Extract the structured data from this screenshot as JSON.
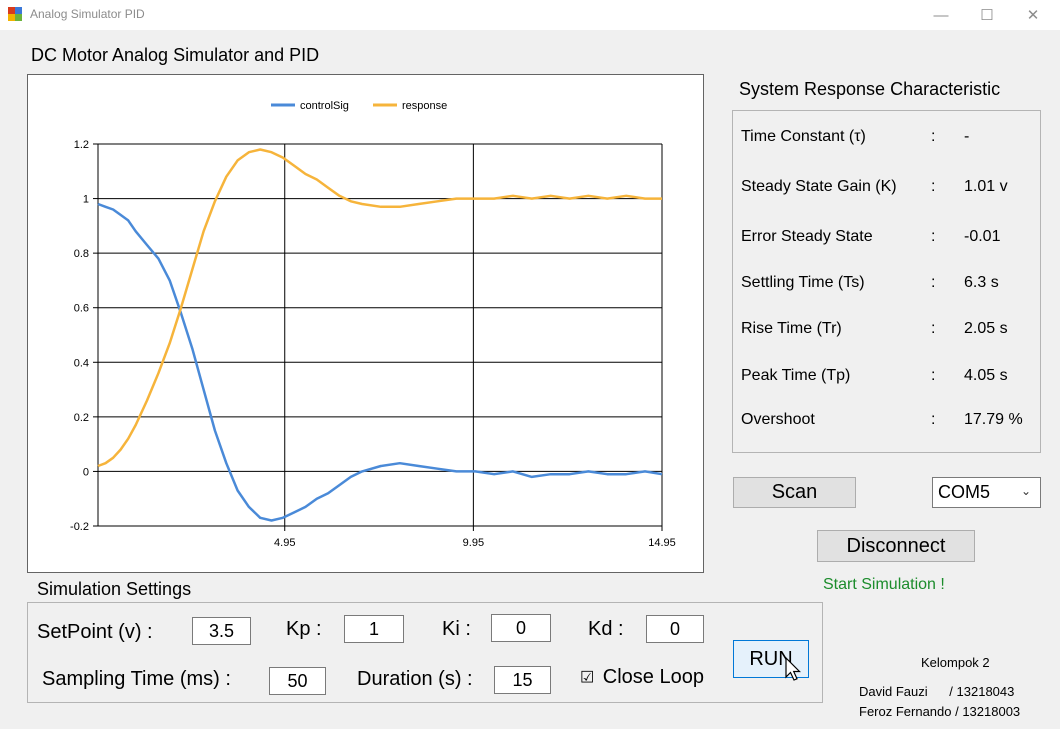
{
  "window": {
    "title": "Analog Simulator PID",
    "minimize": "—",
    "maximize": "☐",
    "close": "✕"
  },
  "form_title": "DC Motor Analog Simulator and PID",
  "response": {
    "title": "System Response Characteristic",
    "rows": [
      {
        "name": "Time Constant (τ)",
        "sep": ":",
        "value": "-"
      },
      {
        "name": "Steady State Gain (K)",
        "sep": ":",
        "value": "1.01 v"
      },
      {
        "name": "Error Steady State",
        "sep": ":",
        "value": "-0.01"
      },
      {
        "name": "Settling Time (Ts)",
        "sep": ":",
        "value": "6.3 s"
      },
      {
        "name": "Rise Time (Tr)",
        "sep": ":",
        "value": "2.05 s"
      },
      {
        "name": "Peak Time (Tp)",
        "sep": ":",
        "value": "4.05 s"
      },
      {
        "name": "Overshoot",
        "sep": ":",
        "value": "17.79 %"
      }
    ]
  },
  "connection": {
    "scan_label": "Scan",
    "port": "COM5",
    "disconnect_label": "Disconnect",
    "status": "Start Simulation !"
  },
  "settings": {
    "title": "Simulation Settings",
    "setpoint_label": "SetPoint (v) :",
    "setpoint": "3.5",
    "kp_label": "Kp :",
    "kp": "1",
    "ki_label": "Ki :",
    "ki": "0",
    "kd_label": "Kd :",
    "kd": "0",
    "sampling_label": "Sampling Time (ms) :",
    "sampling": "50",
    "duration_label": "Duration (s) :",
    "duration": "15",
    "closeloop_label": "Close Loop",
    "closeloop_mark": "☑",
    "run_label": "RUN"
  },
  "credits": {
    "group": "Kelompok 2",
    "member1": "David Fauzi      / 13218043",
    "member2": "Feroz Fernando / 13218003"
  },
  "colors": {
    "control": "#4a8ad8",
    "response": "#f6b43b"
  },
  "chart_data": {
    "type": "line",
    "x_ticks": [
      "4.95",
      "9.95",
      "14.95"
    ],
    "x_tick_values": [
      4.95,
      9.95,
      14.95
    ],
    "y_ticks": [
      "1.2",
      "1",
      "0.8",
      "0.6",
      "0.4",
      "0.2",
      "0",
      "-0.2"
    ],
    "xlim": [
      0,
      14.95
    ],
    "ylim": [
      -0.2,
      1.2
    ],
    "grid": true,
    "legend_position": "top-center",
    "series": [
      {
        "name": "controlSig",
        "x": [
          0,
          0.2,
          0.4,
          0.6,
          0.8,
          1.0,
          1.3,
          1.6,
          1.9,
          2.2,
          2.5,
          2.8,
          3.1,
          3.4,
          3.7,
          4.0,
          4.3,
          4.6,
          4.9,
          5.2,
          5.5,
          5.8,
          6.1,
          6.4,
          6.7,
          7.0,
          7.5,
          8.0,
          8.5,
          9.0,
          9.5,
          10.0,
          10.5,
          11.0,
          11.5,
          12.0,
          12.5,
          13.0,
          13.5,
          14.0,
          14.5,
          14.95
        ],
        "values": [
          0.98,
          0.97,
          0.96,
          0.94,
          0.92,
          0.88,
          0.83,
          0.78,
          0.7,
          0.58,
          0.45,
          0.3,
          0.15,
          0.03,
          -0.07,
          -0.13,
          -0.17,
          -0.18,
          -0.17,
          -0.15,
          -0.13,
          -0.1,
          -0.08,
          -0.05,
          -0.02,
          0.0,
          0.02,
          0.03,
          0.02,
          0.01,
          0.0,
          0.0,
          -0.01,
          0.0,
          -0.02,
          -0.01,
          -0.01,
          0.0,
          -0.01,
          -0.01,
          0.0,
          -0.01
        ]
      },
      {
        "name": "response",
        "x": [
          0,
          0.2,
          0.4,
          0.6,
          0.8,
          1.0,
          1.3,
          1.6,
          1.9,
          2.2,
          2.5,
          2.8,
          3.1,
          3.4,
          3.7,
          4.0,
          4.3,
          4.6,
          4.9,
          5.2,
          5.5,
          5.8,
          6.1,
          6.4,
          6.7,
          7.0,
          7.5,
          8.0,
          8.5,
          9.0,
          9.5,
          10.0,
          10.5,
          11.0,
          11.5,
          12.0,
          12.5,
          13.0,
          13.5,
          14.0,
          14.5,
          14.95
        ],
        "values": [
          0.02,
          0.03,
          0.05,
          0.08,
          0.12,
          0.17,
          0.26,
          0.36,
          0.47,
          0.6,
          0.74,
          0.88,
          0.99,
          1.08,
          1.14,
          1.17,
          1.18,
          1.17,
          1.15,
          1.12,
          1.09,
          1.07,
          1.04,
          1.01,
          0.99,
          0.98,
          0.97,
          0.97,
          0.98,
          0.99,
          1.0,
          1.0,
          1.0,
          1.01,
          1.0,
          1.01,
          1.0,
          1.01,
          1.0,
          1.01,
          1.0,
          1.0
        ]
      }
    ]
  }
}
